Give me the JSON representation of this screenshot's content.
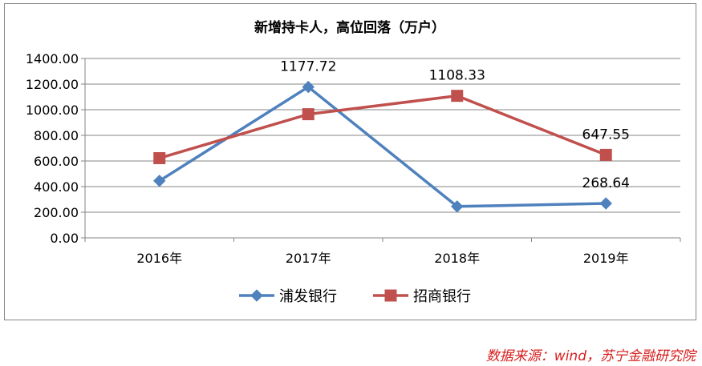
{
  "chart_data": {
    "type": "line",
    "title": "新增持卡人，高位回落（万户）",
    "categories": [
      "2016年",
      "2017年",
      "2018年",
      "2019年"
    ],
    "series": [
      {
        "name": "浦发银行",
        "values": [
          445,
          1177.72,
          245,
          268.64
        ],
        "labels": [
          "",
          "1177.72",
          "",
          "268.64"
        ],
        "color": "#4f81bd",
        "marker": "diamond"
      },
      {
        "name": "招商银行",
        "values": [
          622,
          965,
          1108.33,
          647.55
        ],
        "labels": [
          "",
          "",
          "1108.33",
          "647.55"
        ],
        "color": "#c0504d",
        "marker": "square"
      }
    ],
    "ylim": [
      0,
      1400
    ],
    "yticks": [
      "0.00",
      "200.00",
      "400.00",
      "600.00",
      "800.00",
      "1000.00",
      "1200.00",
      "1400.00"
    ],
    "grid": true,
    "legend_position": "bottom"
  },
  "source": "数据来源：wind，苏宁金融研究院"
}
